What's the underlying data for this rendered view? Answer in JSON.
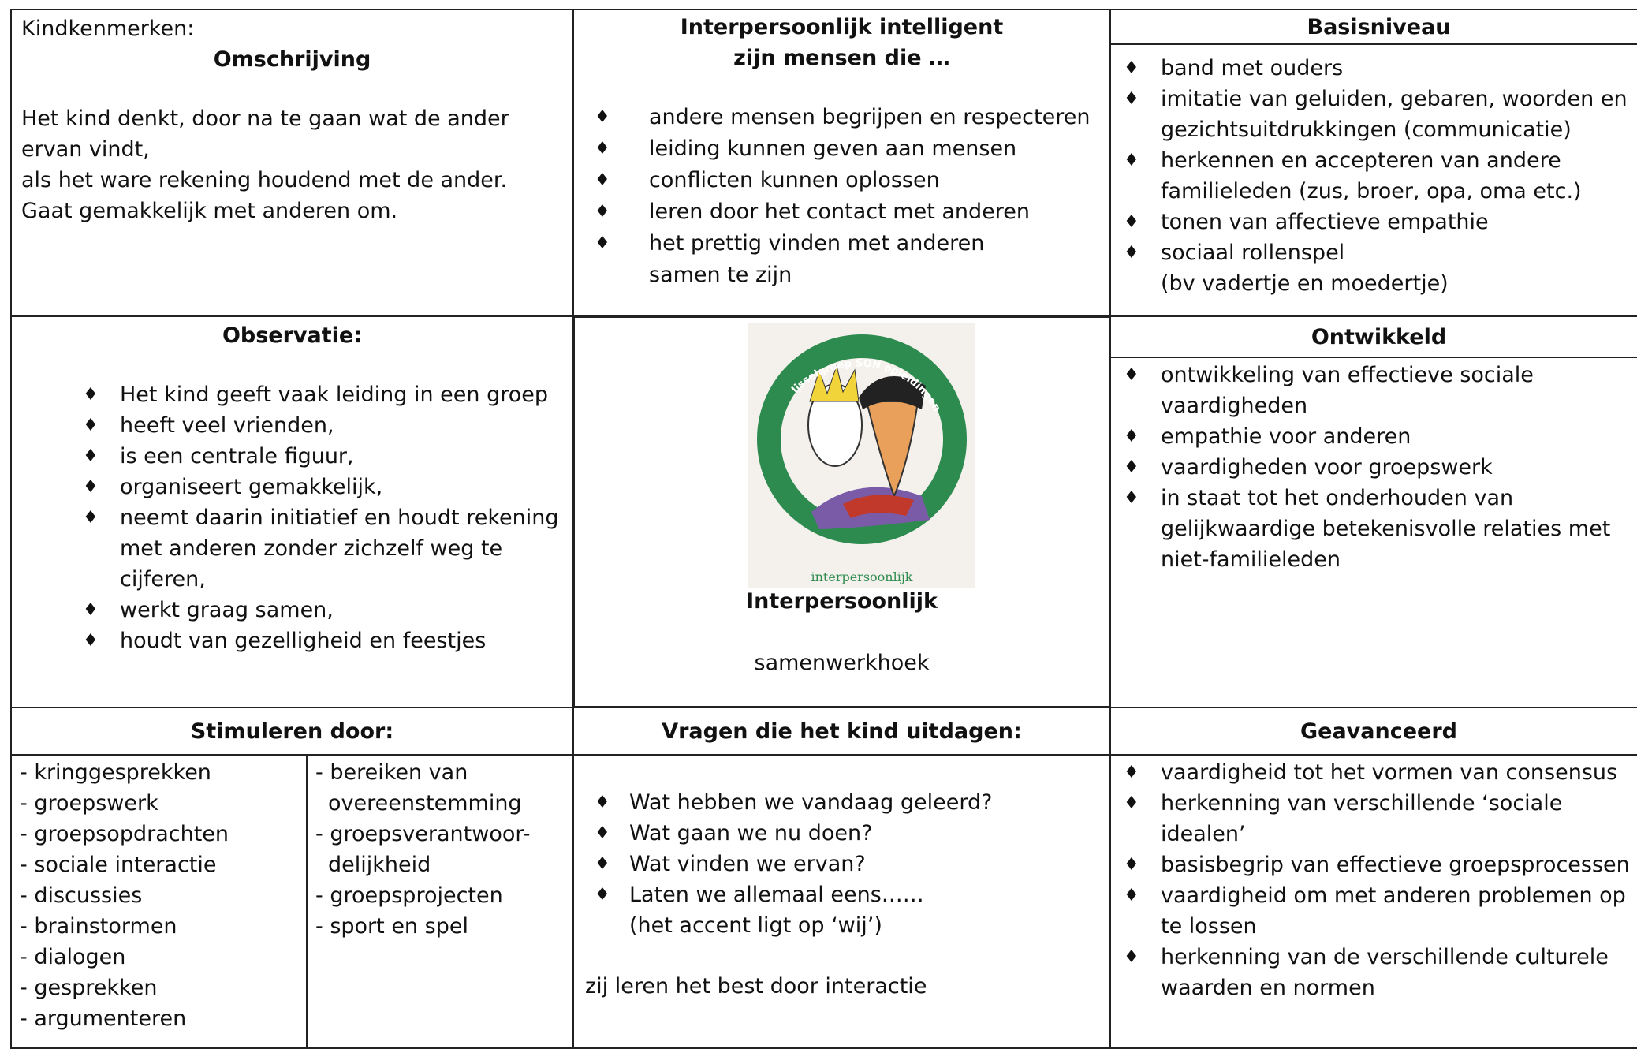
{
  "omschrijving": {
    "label": "Kindkenmerken:",
    "title": "Omschrijving",
    "text": [
      "Het kind denkt, door na te gaan wat de ander ervan vindt,",
      "als het ware rekening houdend met de ander.",
      "Gaat gemakkelijk met anderen om."
    ]
  },
  "intelligent": {
    "title": [
      "Interpersoonlijk intelligent",
      "zijn mensen die …"
    ],
    "items": [
      "andere mensen begrijpen en respecteren",
      "leiding kunnen geven aan mensen",
      "conflicten kunnen oplossen",
      "leren door het contact met anderen",
      [
        "het prettig vinden met anderen",
        "samen te zijn"
      ]
    ]
  },
  "basisniveau": {
    "title": "Basisniveau",
    "items": [
      "band met ouders",
      "imitatie van geluiden, gebaren, woorden en gezichtsuitdrukkingen (communicatie)",
      "herkennen en accepteren van andere familieleden (zus, broer, opa, oma etc.)",
      "tonen van affectieve empathie",
      [
        "sociaal rollenspel",
        "(bv vadertje en moedertje)"
      ]
    ]
  },
  "observatie": {
    "title": "Observatie:",
    "items": [
      "Het kind geeft vaak leiding in een groep",
      "heeft veel vrienden,",
      "is een centrale figuur,",
      "organiseert gemakkelijk,",
      "neemt daarin initiatief en houdt rekening met anderen zonder zichzelf weg te cijferen,",
      "werkt graag samen,",
      "houdt van gezelligheid en feestjes"
    ]
  },
  "center": {
    "logo_arc": "Ijsselgroep SON opleidingen",
    "logo_caption": "interpersoonlijk",
    "title": "Interpersoonlijk",
    "subtitle": "samenwerkhoek"
  },
  "ontwikkeld": {
    "title": "Ontwikkeld",
    "items": [
      "ontwikkeling van effectieve sociale vaardigheden",
      "empathie voor anderen",
      "vaardigheden voor groepswerk",
      "in staat tot het onderhouden van gelijkwaardige betekenisvolle relaties met niet-familieleden"
    ]
  },
  "stimuleren": {
    "title": "Stimuleren door:",
    "column_1": [
      "- kringgesprekken",
      "- groepswerk",
      "- groepsopdrachten",
      "- sociale interactie",
      "- discussies",
      "- brainstormen",
      "- dialogen",
      "- gesprekken",
      "- argumenteren"
    ],
    "column_2": [
      [
        "- bereiken van",
        "overeenstemming"
      ],
      [
        "- groepsverantwoor-",
        "delijkheid"
      ],
      "- groepsprojecten",
      "- sport en spel"
    ]
  },
  "vragen": {
    "title": "Vragen die het kind uitdagen:",
    "items": [
      "Wat hebben we vandaag geleerd?",
      "Wat gaan we nu doen?",
      "Wat vinden we ervan?",
      [
        "Laten we allemaal eens……",
        "(het accent ligt op ‘wij’)"
      ]
    ],
    "note": "zij leren het best door interactie"
  },
  "geavanceerd": {
    "title": "Geavanceerd",
    "items": [
      "vaardigheid tot het vormen van consensus",
      "herkenning van verschillende ‘sociale idealen’",
      "basisbegrip van effectieve groepsprocessen",
      "vaardigheid om met anderen problemen op te lossen",
      "herkenning van de verschillende culturele waarden en normen"
    ]
  }
}
